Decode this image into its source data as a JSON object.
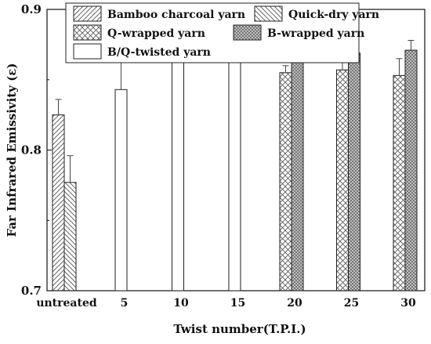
{
  "chart_data": {
    "type": "bar",
    "xlabel": "Twist number(T.P.I.)",
    "ylabel": "Far Infrared Emissivity (ε)",
    "ylim": [
      0.7,
      0.9
    ],
    "yticks": [
      0.7,
      0.8,
      0.9
    ],
    "ytick_labels": [
      "0.7",
      "0.8",
      "0.9"
    ],
    "categories": [
      "untreated",
      "5",
      "10",
      "15",
      "20",
      "25",
      "30"
    ],
    "grid": false,
    "legend_position": "top-left",
    "series": [
      {
        "name": "Bamboo charcoal yarn",
        "pattern": "diagonal-hatch",
        "values": [
          0.825,
          null,
          null,
          null,
          null,
          null,
          null
        ],
        "errors": [
          0.011,
          null,
          null,
          null,
          null,
          null,
          null
        ]
      },
      {
        "name": "Quick-dry yarn",
        "pattern": "back-diagonal-hatch",
        "values": [
          0.777,
          null,
          null,
          null,
          null,
          null,
          null
        ],
        "errors": [
          0.019,
          null,
          null,
          null,
          null,
          null,
          null
        ]
      },
      {
        "name": "Q-wrapped yarn",
        "pattern": "cross-hatch",
        "values": [
          null,
          null,
          null,
          null,
          0.855,
          0.857,
          0.853
        ],
        "errors": [
          null,
          null,
          null,
          null,
          0.005,
          0.015,
          0.012
        ]
      },
      {
        "name": "B-wrapped yarn",
        "pattern": "dense-cross-hatch",
        "values": [
          null,
          null,
          null,
          null,
          0.875,
          0.869,
          0.871
        ],
        "errors": [
          null,
          null,
          null,
          null,
          0.011,
          0.008,
          0.007
        ]
      },
      {
        "name": "B/Q-twisted yarn",
        "pattern": "none",
        "values": [
          null,
          0.843,
          0.873,
          0.879,
          null,
          null,
          null
        ],
        "errors": [
          null,
          0.02,
          0.008,
          0.008,
          null,
          null,
          null
        ]
      }
    ],
    "colors": {
      "axis": "#111111",
      "bar_stroke": "#222222",
      "fill": "#ffffff"
    }
  }
}
